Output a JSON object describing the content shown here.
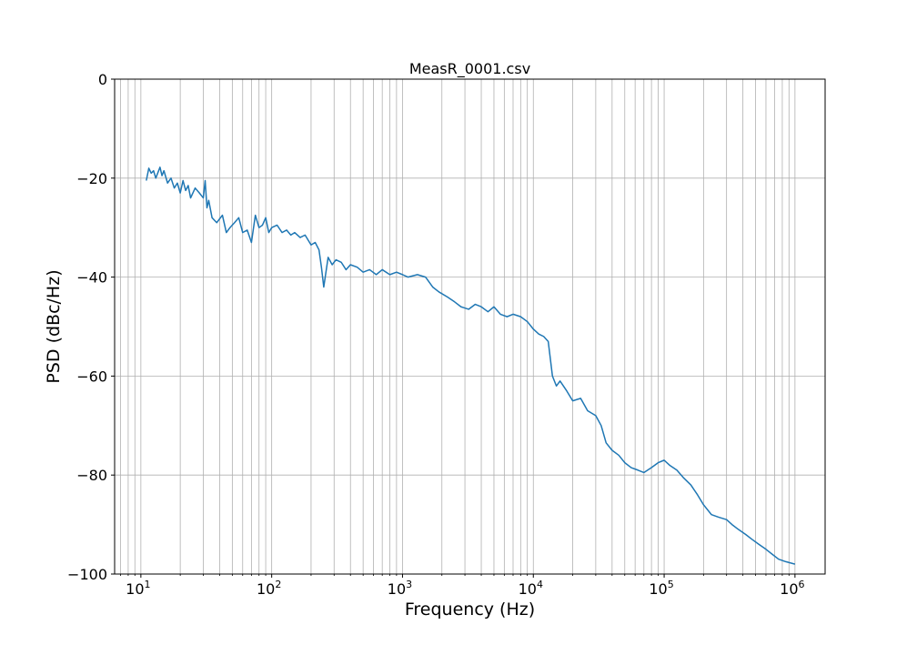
{
  "chart_data": {
    "type": "line",
    "title": "MeasR_0001.csv",
    "xlabel": "Frequency (Hz)",
    "ylabel": "PSD (dBc/Hz)",
    "x_scale": "log",
    "xlim": [
      6.3,
      1700000
    ],
    "ylim": [
      -100,
      0
    ],
    "grid": true,
    "grid_minor_x": true,
    "line_color": "#1f77b4",
    "x_ticks": [
      {
        "base": "10",
        "exp": "1"
      },
      {
        "base": "10",
        "exp": "2"
      },
      {
        "base": "10",
        "exp": "3"
      },
      {
        "base": "10",
        "exp": "4"
      },
      {
        "base": "10",
        "exp": "5"
      },
      {
        "base": "10",
        "exp": "6"
      }
    ],
    "y_ticks": [
      "0",
      "−20",
      "−40",
      "−60",
      "−80",
      "−100"
    ],
    "series": [
      {
        "x": [
          11,
          11.5,
          12,
          12.5,
          13,
          14,
          14.5,
          15,
          16,
          17,
          18,
          19,
          20,
          21,
          22,
          23,
          24,
          26,
          28,
          30,
          31,
          32,
          33,
          35,
          38,
          42,
          45,
          48,
          52,
          56,
          60,
          65,
          70,
          75,
          80,
          85,
          90,
          95,
          100,
          110,
          120,
          130,
          140,
          150,
          165,
          180,
          200,
          215,
          230,
          240,
          250,
          270,
          290,
          310,
          340,
          370,
          400,
          450,
          500,
          560,
          630,
          700,
          800,
          900,
          1000,
          1100,
          1300,
          1500,
          1700,
          1900,
          2200,
          2500,
          2800,
          3200,
          3600,
          4000,
          4500,
          5000,
          5600,
          6300,
          7000,
          8000,
          9000,
          10000,
          11000,
          12000,
          13000,
          14000,
          15000,
          16000,
          18000,
          20000,
          23000,
          26000,
          30000,
          33000,
          36000,
          40000,
          45000,
          50000,
          56000,
          63000,
          70000,
          80000,
          90000,
          100000,
          110000,
          125000,
          140000,
          160000,
          180000,
          200000,
          230000,
          260000,
          300000,
          330000,
          370000,
          420000,
          470000,
          530000,
          600000,
          670000,
          750000,
          850000,
          1000000
        ],
        "y": [
          -20.5,
          -18,
          -19,
          -18.5,
          -20,
          -17.8,
          -19.5,
          -18.5,
          -21,
          -20,
          -22,
          -21,
          -23,
          -20.5,
          -22.5,
          -21.5,
          -24,
          -22,
          -23,
          -24,
          -20.5,
          -26,
          -24.5,
          -28,
          -29,
          -27.5,
          -31,
          -30,
          -29,
          -28,
          -31,
          -30.5,
          -33,
          -27.5,
          -30,
          -29.5,
          -28,
          -31,
          -30,
          -29.5,
          -31,
          -30.5,
          -31.5,
          -31,
          -32,
          -31.5,
          -33.5,
          -33,
          -34.5,
          -38,
          -42,
          -36,
          -37.5,
          -36.5,
          -37,
          -38.5,
          -37.5,
          -38,
          -39,
          -38.5,
          -39.5,
          -38.5,
          -39.5,
          -39,
          -39.5,
          -40,
          -39.5,
          -40,
          -42,
          -43,
          -44,
          -45,
          -46,
          -46.5,
          -45.5,
          -46,
          -47,
          -46,
          -47.5,
          -48,
          -47.5,
          -48,
          -49,
          -50.5,
          -51.5,
          -52,
          -53,
          -60,
          -62,
          -61,
          -63,
          -65,
          -64.5,
          -67,
          -68,
          -70,
          -73.5,
          -75,
          -76,
          -77.5,
          -78.5,
          -79,
          -79.5,
          -78.5,
          -77.5,
          -77,
          -78,
          -79,
          -80.5,
          -82,
          -84,
          -86,
          -88,
          -88.5,
          -89,
          -90,
          -91,
          -92,
          -93,
          -94,
          -95,
          -96,
          -97,
          -97.5,
          -98
        ]
      }
    ]
  }
}
